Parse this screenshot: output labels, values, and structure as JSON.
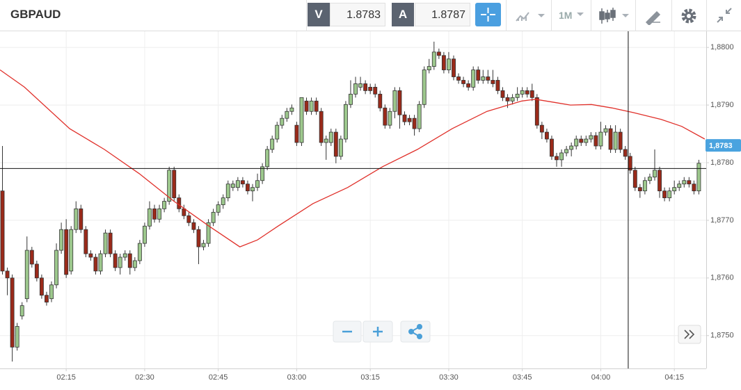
{
  "header": {
    "symbol": "GBPAUD",
    "bid_label": "V",
    "bid": 1.8783,
    "ask_label": "A",
    "ask": 1.8787,
    "timeframe": "1M"
  },
  "chart_data": {
    "type": "candlestick",
    "up_color": "#9dc88d",
    "down_color": "#9a2a1a",
    "grid": true,
    "xlim": [
      -0.5,
      143.5
    ],
    "xticks": [
      {
        "value": 13,
        "label": "02:15"
      },
      {
        "value": 29,
        "label": "02:30"
      },
      {
        "value": 44,
        "label": "02:45"
      },
      {
        "value": 60,
        "label": "03:00"
      },
      {
        "value": 75,
        "label": "03:15"
      },
      {
        "value": 91,
        "label": "03:30"
      },
      {
        "value": 106,
        "label": "03:45"
      },
      {
        "value": 122,
        "label": "04:00"
      },
      {
        "value": 137,
        "label": "04:15"
      }
    ],
    "ylim": [
      1.87443,
      1.88028
    ],
    "yticks": [
      {
        "value": 1.875,
        "label": "1,8750"
      },
      {
        "value": 1.876,
        "label": "1,8760"
      },
      {
        "value": 1.877,
        "label": "1,8770"
      },
      {
        "value": 1.878,
        "label": "1,8780"
      },
      {
        "value": 1.879,
        "label": "1,8790"
      },
      {
        "value": 1.88,
        "label": "1,8800"
      }
    ],
    "last_price": {
      "value": 1.8783,
      "label": "1,8783",
      "color": "#4aa3df"
    },
    "crosshair": {
      "x": 127.6,
      "y": 1.8779
    },
    "ma": {
      "color": "#e0302a",
      "x": [
        -0.5,
        4.5,
        13.7,
        20.8,
        27.9,
        35,
        42.1,
        48.4,
        52,
        56.2,
        63.3,
        70.4,
        77.5,
        84.6,
        91.7,
        98.8,
        105.9,
        108.7,
        113,
        115.8,
        120.1,
        124.3,
        128.6,
        134.3,
        138.5,
        143.2
      ],
      "values": [
        1.87961,
        1.87931,
        1.87859,
        1.87823,
        1.87781,
        1.87733,
        1.8769,
        1.87654,
        1.87666,
        1.8769,
        1.87729,
        1.87757,
        1.87793,
        1.87823,
        1.87859,
        1.87889,
        1.87907,
        1.8791,
        1.87904,
        1.879,
        1.87901,
        1.87895,
        1.87887,
        1.87875,
        1.87863,
        1.87841
      ]
    },
    "ohlc": [
      [
        1.87751,
        1.87829,
        1.87606,
        1.87612
      ],
      [
        1.87612,
        1.87618,
        1.8757,
        1.876
      ],
      [
        1.876,
        1.87606,
        1.87455,
        1.8748
      ],
      [
        1.8748,
        1.87522,
        1.87474,
        1.87516
      ],
      [
        1.87534,
        1.87558,
        1.87528,
        1.87552
      ],
      [
        1.87564,
        1.87672,
        1.87558,
        1.87648
      ],
      [
        1.87648,
        1.87654,
        1.87618,
        1.87624
      ],
      [
        1.87624,
        1.8763,
        1.87594,
        1.876
      ],
      [
        1.876,
        1.87606,
        1.87564,
        1.8757
      ],
      [
        1.8757,
        1.87576,
        1.87552,
        1.87558
      ],
      [
        1.87564,
        1.87594,
        1.87558,
        1.87588
      ],
      [
        1.87588,
        1.8766,
        1.87582,
        1.87648
      ],
      [
        1.87648,
        1.87696,
        1.87642,
        1.87684
      ],
      [
        1.87684,
        1.87702,
        1.876,
        1.87606
      ],
      [
        1.87612,
        1.8769,
        1.87606,
        1.87684
      ],
      [
        1.87684,
        1.87733,
        1.87678,
        1.8772
      ],
      [
        1.8772,
        1.87727,
        1.87678,
        1.87684
      ],
      [
        1.87684,
        1.8769,
        1.87636,
        1.87642
      ],
      [
        1.87642,
        1.87648,
        1.8763,
        1.87636
      ],
      [
        1.87636,
        1.87642,
        1.87606,
        1.87612
      ],
      [
        1.87612,
        1.87648,
        1.87606,
        1.87642
      ],
      [
        1.87642,
        1.87684,
        1.87636,
        1.87678
      ],
      [
        1.87678,
        1.87684,
        1.87636,
        1.87642
      ],
      [
        1.87642,
        1.87648,
        1.87612,
        1.87618
      ],
      [
        1.87618,
        1.87642,
        1.87606,
        1.87636
      ],
      [
        1.87636,
        1.87648,
        1.8763,
        1.87642
      ],
      [
        1.87642,
        1.87648,
        1.87606,
        1.87618
      ],
      [
        1.87618,
        1.87636,
        1.87612,
        1.8763
      ],
      [
        1.8763,
        1.87666,
        1.87624,
        1.8766
      ],
      [
        1.8766,
        1.87696,
        1.87654,
        1.8769
      ],
      [
        1.8769,
        1.87733,
        1.87684,
        1.8772
      ],
      [
        1.8772,
        1.87727,
        1.87696,
        1.87702
      ],
      [
        1.87702,
        1.87727,
        1.87696,
        1.8772
      ],
      [
        1.8772,
        1.87739,
        1.87714,
        1.87733
      ],
      [
        1.87733,
        1.87793,
        1.87727,
        1.87787
      ],
      [
        1.87787,
        1.87793,
        1.87733,
        1.87739
      ],
      [
        1.87739,
        1.87745,
        1.87714,
        1.8772
      ],
      [
        1.8772,
        1.87727,
        1.87702,
        1.87708
      ],
      [
        1.87708,
        1.87714,
        1.8769,
        1.87696
      ],
      [
        1.87696,
        1.87702,
        1.87678,
        1.87684
      ],
      [
        1.87684,
        1.8769,
        1.87624,
        1.87654
      ],
      [
        1.87654,
        1.87666,
        1.87648,
        1.8766
      ],
      [
        1.8766,
        1.87702,
        1.87654,
        1.87696
      ],
      [
        1.87696,
        1.8772,
        1.8769,
        1.87714
      ],
      [
        1.87714,
        1.87733,
        1.87708,
        1.87727
      ],
      [
        1.87727,
        1.87745,
        1.8772,
        1.87739
      ],
      [
        1.87739,
        1.87769,
        1.87733,
        1.87763
      ],
      [
        1.87757,
        1.87769,
        1.87751,
        1.87763
      ],
      [
        1.87757,
        1.87775,
        1.87751,
        1.87769
      ],
      [
        1.87769,
        1.87775,
        1.87757,
        1.87763
      ],
      [
        1.87763,
        1.87769,
        1.87745,
        1.87751
      ],
      [
        1.87751,
        1.87763,
        1.87733,
        1.87757
      ],
      [
        1.87757,
        1.87781,
        1.87751,
        1.87769
      ],
      [
        1.87769,
        1.87799,
        1.87763,
        1.87793
      ],
      [
        1.87793,
        1.87829,
        1.87787,
        1.87823
      ],
      [
        1.87823,
        1.87847,
        1.87817,
        1.87841
      ],
      [
        1.87841,
        1.87871,
        1.87835,
        1.87865
      ],
      [
        1.87865,
        1.87883,
        1.87859,
        1.87877
      ],
      [
        1.87877,
        1.87895,
        1.87871,
        1.87889
      ],
      [
        1.87889,
        1.87901,
        1.87883,
        1.87895
      ],
      [
        1.87865,
        1.87871,
        1.87829,
        1.87835
      ],
      [
        1.87835,
        1.87913,
        1.87829,
        1.87913
      ],
      [
        1.87907,
        1.87913,
        1.87883,
        1.87889
      ],
      [
        1.87889,
        1.87913,
        1.87883,
        1.87907
      ],
      [
        1.87907,
        1.87913,
        1.87883,
        1.87889
      ],
      [
        1.87889,
        1.87895,
        1.87829,
        1.87835
      ],
      [
        1.87835,
        1.87847,
        1.87805,
        1.87841
      ],
      [
        1.87835,
        1.87859,
        1.87829,
        1.87853
      ],
      [
        1.87853,
        1.87859,
        1.87799,
        1.87811
      ],
      [
        1.87811,
        1.87847,
        1.87805,
        1.87841
      ],
      [
        1.87841,
        1.87907,
        1.87835,
        1.87901
      ],
      [
        1.87901,
        1.87943,
        1.87895,
        1.87919
      ],
      [
        1.87919,
        1.87949,
        1.87913,
        1.87937
      ],
      [
        1.87931,
        1.87949,
        1.87925,
        1.87937
      ],
      [
        1.87937,
        1.87943,
        1.87919,
        1.87925
      ],
      [
        1.87931,
        1.87937,
        1.87919,
        1.87925
      ],
      [
        1.87931,
        1.87937,
        1.87913,
        1.87919
      ],
      [
        1.87919,
        1.87925,
        1.87889,
        1.87895
      ],
      [
        1.87895,
        1.87901,
        1.87859,
        1.87865
      ],
      [
        1.87865,
        1.87895,
        1.87859,
        1.87889
      ],
      [
        1.87889,
        1.87931,
        1.87877,
        1.87925
      ],
      [
        1.87925,
        1.87931,
        1.87859,
        1.87883
      ],
      [
        1.87883,
        1.87889,
        1.87865,
        1.87871
      ],
      [
        1.87877,
        1.87883,
        1.87865,
        1.87871
      ],
      [
        1.87877,
        1.87883,
        1.87847,
        1.87859
      ],
      [
        1.87859,
        1.87907,
        1.87853,
        1.87901
      ],
      [
        1.87901,
        1.87967,
        1.87895,
        1.87961
      ],
      [
        1.87961,
        1.8798,
        1.87955,
        1.87967
      ],
      [
        1.87967,
        1.8801,
        1.87961,
        1.87992
      ],
      [
        1.87992,
        1.87998,
        1.8798,
        1.87986
      ],
      [
        1.87986,
        1.87992,
        1.87955,
        1.87961
      ],
      [
        1.87961,
        1.87992,
        1.87955,
        1.8798
      ],
      [
        1.8798,
        1.87986,
        1.87943,
        1.87949
      ],
      [
        1.87949,
        1.87955,
        1.87937,
        1.87943
      ],
      [
        1.87943,
        1.87949,
        1.87931,
        1.87937
      ],
      [
        1.87937,
        1.87943,
        1.87925,
        1.87931
      ],
      [
        1.87931,
        1.87967,
        1.87925,
        1.87961
      ],
      [
        1.87961,
        1.87967,
        1.87937,
        1.87943
      ],
      [
        1.87943,
        1.87961,
        1.87937,
        1.87949
      ],
      [
        1.87949,
        1.87961,
        1.87937,
        1.87943
      ],
      [
        1.87943,
        1.87961,
        1.87931,
        1.87937
      ],
      [
        1.87943,
        1.87949,
        1.87919,
        1.87925
      ],
      [
        1.87925,
        1.87931,
        1.87907,
        1.87913
      ],
      [
        1.87913,
        1.87919,
        1.87895,
        1.87907
      ],
      [
        1.87907,
        1.87919,
        1.87901,
        1.87913
      ],
      [
        1.87913,
        1.87931,
        1.87907,
        1.87919
      ],
      [
        1.87919,
        1.87931,
        1.87913,
        1.87925
      ],
      [
        1.87925,
        1.87931,
        1.87913,
        1.87919
      ],
      [
        1.87925,
        1.87937,
        1.87907,
        1.87913
      ],
      [
        1.87913,
        1.87919,
        1.87859,
        1.87865
      ],
      [
        1.87865,
        1.87871,
        1.87841,
        1.87853
      ],
      [
        1.87853,
        1.87859,
        1.87835,
        1.87841
      ],
      [
        1.87841,
        1.87847,
        1.87805,
        1.87811
      ],
      [
        1.87811,
        1.87817,
        1.87793,
        1.87805
      ],
      [
        1.87805,
        1.87823,
        1.87793,
        1.87817
      ],
      [
        1.87817,
        1.87829,
        1.87811,
        1.87823
      ],
      [
        1.87823,
        1.87835,
        1.87811,
        1.87829
      ],
      [
        1.87829,
        1.87847,
        1.87823,
        1.87841
      ],
      [
        1.87841,
        1.87847,
        1.87829,
        1.87835
      ],
      [
        1.87835,
        1.87847,
        1.87829,
        1.87841
      ],
      [
        1.87841,
        1.87853,
        1.87835,
        1.87847
      ],
      [
        1.87847,
        1.87853,
        1.87823,
        1.87829
      ],
      [
        1.87829,
        1.87871,
        1.87823,
        1.87853
      ],
      [
        1.87853,
        1.87865,
        1.87847,
        1.87859
      ],
      [
        1.87859,
        1.87865,
        1.87817,
        1.87823
      ],
      [
        1.87823,
        1.87865,
        1.87817,
        1.87853
      ],
      [
        1.87853,
        1.87859,
        1.87817,
        1.87823
      ],
      [
        1.87823,
        1.87829,
        1.87805,
        1.87811
      ],
      [
        1.87811,
        1.87817,
        1.87781,
        1.87787
      ],
      [
        1.87787,
        1.87793,
        1.87751,
        1.87757
      ],
      [
        1.87757,
        1.87763,
        1.87739,
        1.87751
      ],
      [
        1.87751,
        1.87775,
        1.87745,
        1.87769
      ],
      [
        1.87769,
        1.87781,
        1.87763,
        1.87775
      ],
      [
        1.87775,
        1.87823,
        1.87769,
        1.87787
      ],
      [
        1.87787,
        1.87793,
        1.87739,
        1.87751
      ],
      [
        1.87751,
        1.87757,
        1.87733,
        1.87739
      ],
      [
        1.87739,
        1.87757,
        1.87733,
        1.87751
      ],
      [
        1.87751,
        1.87769,
        1.87745,
        1.87757
      ],
      [
        1.87757,
        1.87769,
        1.87751,
        1.87763
      ],
      [
        1.87763,
        1.87775,
        1.87757,
        1.87769
      ],
      [
        1.87769,
        1.87775,
        1.87757,
        1.87763
      ],
      [
        1.87763,
        1.87769,
        1.87745,
        1.87751
      ],
      [
        1.87751,
        1.87805,
        1.87745,
        1.87799
      ]
    ]
  }
}
